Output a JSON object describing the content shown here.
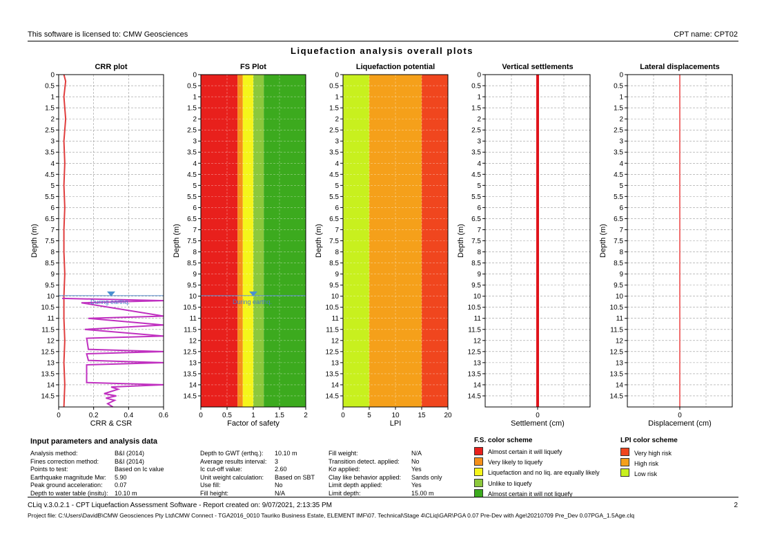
{
  "header": {
    "license": "This software is licensed to: CMW Geosciences",
    "cpt_name": "CPT name: CPT02",
    "title": "Liquefaction analysis overall plots"
  },
  "chart_data": [
    {
      "type": "line",
      "title": "CRR plot",
      "xlabel": "CRR & CSR",
      "ylabel": "Depth (m)",
      "xlim": [
        0,
        0.6
      ],
      "ylim": [
        15,
        0
      ],
      "x_ticks": [
        "0",
        "0.2",
        "0.4",
        "0.6"
      ],
      "y_ticks": [
        "0",
        "0.5",
        "1",
        "1.5",
        "2",
        "2.5",
        "3",
        "3.5",
        "4",
        "4.5",
        "5",
        "5.5",
        "6",
        "6.5",
        "7",
        "7.5",
        "8",
        "8.5",
        "9",
        "9.5",
        "10",
        "10.5",
        "11",
        "11.5",
        "12",
        "12.5",
        "13",
        "13.5",
        "14",
        "14.5"
      ],
      "annotation": "During earthq.",
      "gwt_depth": 10.1,
      "series": [
        {
          "color": "#e03c3c",
          "points": [
            [
              0.03,
              0
            ],
            [
              0.04,
              0.3
            ],
            [
              0.03,
              1
            ],
            [
              0.04,
              2
            ],
            [
              0.03,
              3
            ],
            [
              0.035,
              4
            ],
            [
              0.03,
              5
            ],
            [
              0.035,
              6
            ],
            [
              0.03,
              7
            ],
            [
              0.03,
              8
            ],
            [
              0.035,
              9
            ],
            [
              0.03,
              10
            ],
            [
              0.03,
              11
            ],
            [
              0.035,
              12
            ],
            [
              0.03,
              13
            ],
            [
              0.035,
              14
            ],
            [
              0.03,
              15
            ]
          ]
        },
        {
          "color": "#c030c0",
          "points": [
            [
              0.02,
              10.1
            ],
            [
              0.6,
              10.2
            ],
            [
              0.13,
              10.3
            ],
            [
              0.6,
              10.9
            ],
            [
              0.17,
              11.0
            ],
            [
              0.6,
              11.3
            ],
            [
              0.15,
              11.5
            ],
            [
              0.6,
              11.8
            ],
            [
              0.16,
              11.9
            ],
            [
              0.17,
              12.4
            ],
            [
              0.6,
              12.5
            ],
            [
              0.16,
              12.6
            ],
            [
              0.17,
              12.9
            ],
            [
              0.6,
              13.0
            ],
            [
              0.16,
              13.1
            ],
            [
              0.16,
              13.9
            ],
            [
              0.6,
              14.0
            ],
            [
              0.3,
              14.1
            ],
            [
              0.34,
              14.2
            ],
            [
              0.26,
              14.4
            ],
            [
              0.33,
              14.5
            ],
            [
              0.27,
              14.6
            ],
            [
              0.32,
              14.7
            ],
            [
              0.28,
              14.85
            ],
            [
              0.31,
              15
            ]
          ]
        }
      ]
    },
    {
      "type": "area",
      "title": "FS Plot",
      "xlabel": "Factor of safety",
      "ylabel": "Depth (m)",
      "xlim": [
        0,
        2
      ],
      "ylim": [
        15,
        0
      ],
      "x_ticks": [
        "0",
        "0.5",
        "1",
        "1.5",
        "2"
      ],
      "y_ticks": [
        "0",
        "0.5",
        "1",
        "1.5",
        "2",
        "2.5",
        "3",
        "3.5",
        "4",
        "4.5",
        "5",
        "5.5",
        "6",
        "6.5",
        "7",
        "7.5",
        "8",
        "8.5",
        "9",
        "9.5",
        "10",
        "10.5",
        "11",
        "11.5",
        "12",
        "12.5",
        "13",
        "13.5",
        "14",
        "14.5"
      ],
      "annotation": "During earthq.",
      "gwt_depth": 10.1,
      "bands": [
        {
          "from": 0,
          "to": 0.7,
          "color": "#e8201c"
        },
        {
          "from": 0.7,
          "to": 0.8,
          "color": "#f5901a"
        },
        {
          "from": 0.8,
          "to": 1.0,
          "color": "#f5f51a"
        },
        {
          "from": 1.0,
          "to": 1.2,
          "color": "#8cc83c"
        },
        {
          "from": 1.2,
          "to": 2.0,
          "color": "#3caa1e"
        }
      ]
    },
    {
      "type": "area",
      "title": "Liquefaction potential",
      "xlabel": "LPI",
      "ylabel": "Depth (m)",
      "xlim": [
        0,
        20
      ],
      "ylim": [
        15,
        0
      ],
      "x_ticks": [
        "0",
        "5",
        "10",
        "15",
        "20"
      ],
      "y_ticks": [
        "0",
        "0.5",
        "1",
        "1.5",
        "2",
        "2.5",
        "3",
        "3.5",
        "4",
        "4.5",
        "5",
        "5.5",
        "6",
        "6.5",
        "7",
        "7.5",
        "8",
        "8.5",
        "9",
        "9.5",
        "10",
        "10.5",
        "11",
        "11.5",
        "12",
        "12.5",
        "13",
        "13.5",
        "14",
        "14.5"
      ],
      "bands": [
        {
          "from": 0,
          "to": 5,
          "color": "#c8f01e"
        },
        {
          "from": 5,
          "to": 15,
          "color": "#f5a01a"
        },
        {
          "from": 15,
          "to": 20,
          "color": "#f0461e"
        }
      ]
    },
    {
      "type": "line",
      "title": "Vertical settlements",
      "xlabel": "Settlement (cm)",
      "ylabel": "Depth (m)",
      "xlim": [
        -1,
        1
      ],
      "ylim": [
        15,
        0
      ],
      "x_ticks": [
        "0"
      ],
      "y_ticks": [
        "0",
        "0.5",
        "1",
        "1.5",
        "2",
        "2.5",
        "3",
        "3.5",
        "4",
        "4.5",
        "5",
        "5.5",
        "6",
        "6.5",
        "7",
        "7.5",
        "8",
        "8.5",
        "9",
        "9.5",
        "10",
        "10.5",
        "11",
        "11.5",
        "12",
        "12.5",
        "13",
        "13.5",
        "14",
        "14.5"
      ],
      "series": [
        {
          "color": "#e0141c",
          "points": [
            [
              0,
              0
            ],
            [
              0,
              15
            ]
          ]
        }
      ]
    },
    {
      "type": "line",
      "title": "Lateral displacements",
      "xlabel": "Displacement (cm)",
      "ylabel": "Depth (m)",
      "xlim": [
        -1,
        1
      ],
      "ylim": [
        15,
        0
      ],
      "x_ticks": [
        "0"
      ],
      "y_ticks": [
        "0",
        "0.5",
        "1",
        "1.5",
        "2",
        "2.5",
        "3",
        "3.5",
        "4",
        "4.5",
        "5",
        "5.5",
        "6",
        "6.5",
        "7",
        "7.5",
        "8",
        "8.5",
        "9",
        "9.5",
        "10",
        "10.5",
        "11",
        "11.5",
        "12",
        "12.5",
        "13",
        "13.5",
        "14",
        "14.5"
      ],
      "series": [
        {
          "color": "#f07070",
          "points": [
            [
              0,
              0
            ],
            [
              0,
              15
            ]
          ]
        }
      ]
    }
  ],
  "params": {
    "title": "Input parameters and analysis data",
    "col1": [
      {
        "label": "Analysis method:",
        "value": "B&I (2014)"
      },
      {
        "label": "Fines correction method:",
        "value": "B&I (2014)"
      },
      {
        "label": "Points to test:",
        "value": "Based on Ic value"
      },
      {
        "label": "Earthquake magnitude Mw:",
        "value": "5.90"
      },
      {
        "label": "Peak ground acceleration:",
        "value": "0.07"
      },
      {
        "label": "Depth to water table (insitu):",
        "value": "10.10 m"
      }
    ],
    "col2": [
      {
        "label": "Depth to GWT (erthq.):",
        "value": "10.10 m"
      },
      {
        "label": "Average results interval:",
        "value": "3"
      },
      {
        "label": "Ic cut-off value:",
        "value": "2.60"
      },
      {
        "label": "Unit weight calculation:",
        "value": "Based on SBT"
      },
      {
        "label": "Use fill:",
        "value": "No"
      },
      {
        "label": "Fill height:",
        "value": "N/A"
      }
    ],
    "col3": [
      {
        "label": "Fill weight:",
        "value": "N/A"
      },
      {
        "label": "Transition detect. applied:",
        "value": "No"
      },
      {
        "label": "Kσ applied:",
        "value": "Yes"
      },
      {
        "label": "Clay like behavior applied:",
        "value": "Sands only"
      },
      {
        "label": "Limit depth applied:",
        "value": "Yes"
      },
      {
        "label": "Limit depth:",
        "value": "15.00 m"
      }
    ]
  },
  "fs_scheme": {
    "title": "F.S. color scheme",
    "items": [
      {
        "color": "#e8201c",
        "label": "Almost certain it will liquefy"
      },
      {
        "color": "#f5901a",
        "label": "Very likely to liquefy"
      },
      {
        "color": "#f5f51a",
        "label": "Liquefaction and no liq. are equally likely"
      },
      {
        "color": "#8cc83c",
        "label": "Unlike to liquefy"
      },
      {
        "color": "#3caa1e",
        "label": "Almost certain it will not liquefy"
      }
    ]
  },
  "lpi_scheme": {
    "title": "LPI color scheme",
    "items": [
      {
        "color": "#f0461e",
        "label": "Very high risk"
      },
      {
        "color": "#f5a01a",
        "label": "High risk"
      },
      {
        "color": "#c8f01e",
        "label": "Low risk"
      }
    ]
  },
  "footer": {
    "line1": "CLiq v.3.0.2.1 - CPT Liquefaction Assessment Software - Report created on: 9/07/2021, 2:13:35 PM",
    "page": "2",
    "line2": "Project file: C:\\Users\\DavidB\\CMW Geosciences Pty Ltd\\CMW Connect - TGA2016_0010 Tauriko Business Estate, ELEMENT IMF\\07. Technical\\Stage 4\\CLiq\\GAR\\PGA 0.07 Pre-Dev with Age\\20210709 Pre_Dev 0.07PGA_1.5Age.clq"
  }
}
